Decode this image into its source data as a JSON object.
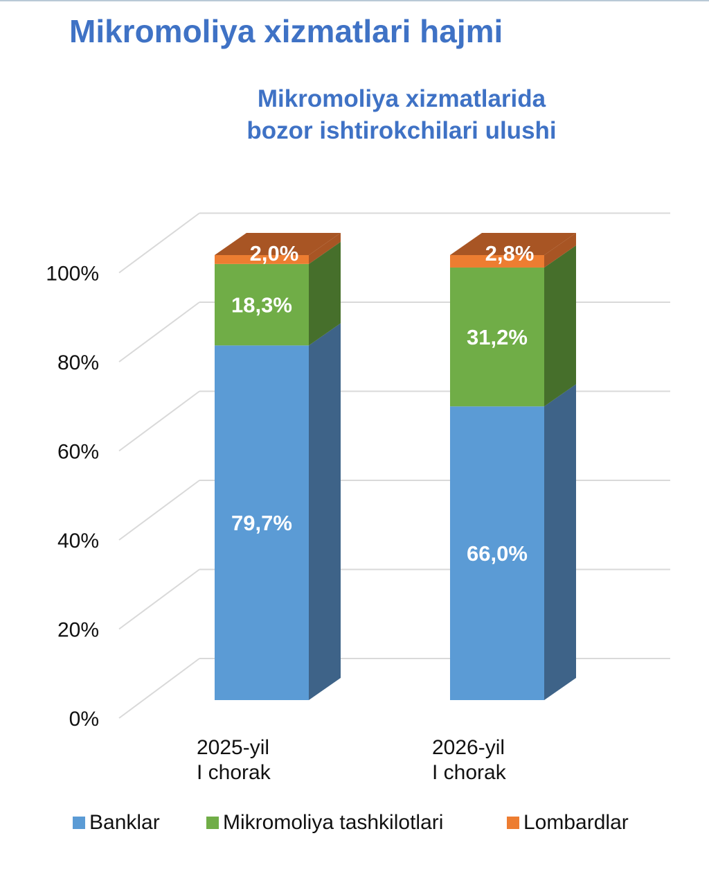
{
  "page": {
    "title": "Mikromoliya xizmatlari hajmi"
  },
  "colors": {
    "title": "#3f72c5",
    "series": [
      "#5b9bd5",
      "#70ad47",
      "#ed7d31"
    ],
    "series_side": [
      "#3e6388",
      "#466f2b",
      "#a85524"
    ],
    "gridline": "#d9d9d9",
    "data_label": "#ffffff"
  },
  "chart_data": {
    "type": "bar",
    "stacked": true,
    "style": "3d-column",
    "title": [
      "Mikromoliya xizmatlarida",
      "bozor ishtirokchilari ulushi"
    ],
    "categories": [
      [
        "2025-yil",
        "I chorak"
      ],
      [
        "2026-yil",
        "I chorak"
      ]
    ],
    "series": [
      {
        "name": "Banklar",
        "values": [
          79.7,
          66.0
        ],
        "labels": [
          "79,7%",
          "66,0%"
        ]
      },
      {
        "name": "Mikromoliya tashkilotlari",
        "values": [
          18.3,
          31.2
        ],
        "labels": [
          "18,3%",
          "31,2%"
        ]
      },
      {
        "name": "Lombardlar",
        "values": [
          2.0,
          2.8
        ],
        "labels": [
          "2,0%",
          "2,8%"
        ]
      }
    ],
    "y_ticks": [
      "0%",
      "20%",
      "40%",
      "60%",
      "80%",
      "100%"
    ],
    "ylim": [
      0,
      100
    ],
    "xlabel": "",
    "ylabel": "",
    "grid": true,
    "legend_position": "bottom"
  }
}
